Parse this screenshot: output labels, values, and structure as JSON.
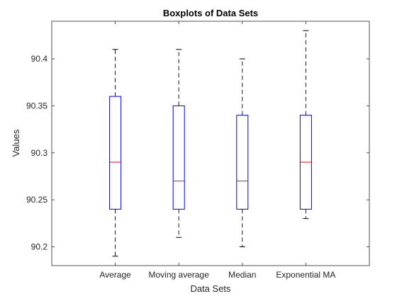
{
  "chart_data": {
    "type": "boxplot",
    "title": "Boxplots of Data Sets",
    "xlabel": "Data Sets",
    "ylabel": "Values",
    "ylim": [
      90.18,
      90.44
    ],
    "yticks": [
      90.2,
      90.25,
      90.3,
      90.35,
      90.4
    ],
    "ytick_labels": [
      "90.2",
      "90.25",
      "90.3",
      "90.35",
      "90.4"
    ],
    "categories": [
      "Average",
      "Moving average",
      "Median",
      "Exponential MA"
    ],
    "boxes": [
      {
        "category": "Average",
        "whisker_low": 90.19,
        "q1": 90.24,
        "median": 90.29,
        "q3": 90.36,
        "whisker_high": 90.41
      },
      {
        "category": "Moving average",
        "whisker_low": 90.21,
        "q1": 90.24,
        "median": 90.27,
        "q3": 90.35,
        "whisker_high": 90.41
      },
      {
        "category": "Median",
        "whisker_low": 90.2,
        "q1": 90.24,
        "median": 90.27,
        "q3": 90.34,
        "whisker_high": 90.4
      },
      {
        "category": "Exponential MA",
        "whisker_low": 90.23,
        "q1": 90.24,
        "median": 90.29,
        "q3": 90.34,
        "whisker_high": 90.43
      }
    ],
    "grid": false,
    "colors": {
      "box": "#0000ff",
      "median": "#ff0000",
      "whisker": "#000000",
      "axes": "#262626"
    }
  }
}
